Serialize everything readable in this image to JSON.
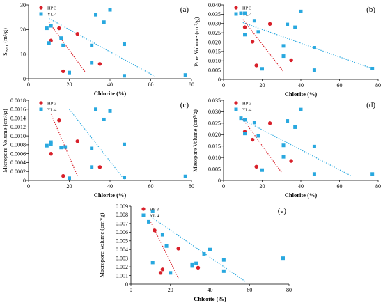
{
  "colors": {
    "hp3": "#d8202a",
    "yl4": "#29a8df"
  },
  "chart_data": [
    {
      "type": "scatter",
      "panel_label": "(a)",
      "xlabel": "Chlorite (%)",
      "ylabel": "S_BET (m²/g)",
      "ylabel_main": "S",
      "ylabel_sub": "BET",
      "ylabel_rest": " (m²/g)",
      "xlim": [
        0,
        80
      ],
      "ylim": [
        0,
        30
      ],
      "x_ticks": [
        0,
        20,
        40,
        60,
        80
      ],
      "y_ticks": [
        0,
        10,
        20,
        30
      ],
      "x_tick_labels": [
        "0",
        "20",
        "40",
        "60",
        "80"
      ],
      "y_tick_labels": [
        "0",
        "10",
        "20",
        "30"
      ],
      "series": [
        {
          "name": "HP 3",
          "color_key": "hp3",
          "marker": "circle",
          "points": [
            [
              15,
              20.5
            ],
            [
              11,
              15.5
            ],
            [
              24,
              18.2
            ],
            [
              17,
              3
            ],
            [
              35,
              6
            ]
          ],
          "trend": [
            [
              10,
              23
            ],
            [
              28,
              2.5
            ]
          ]
        },
        {
          "name": "YL 4",
          "color_key": "yl4",
          "marker": "square",
          "points": [
            [
              9,
              20.5
            ],
            [
              11,
              21.5
            ],
            [
              10,
              14.5
            ],
            [
              16,
              16.5
            ],
            [
              17,
              13.5
            ],
            [
              20,
              2.5
            ],
            [
              31,
              13.5
            ],
            [
              31,
              6.5
            ],
            [
              33,
              26
            ],
            [
              37,
              23
            ],
            [
              40,
              28
            ],
            [
              47,
              14
            ],
            [
              47,
              1.2
            ],
            [
              77,
              1.5
            ]
          ],
          "trend": [
            [
              10,
              24.5
            ],
            [
              62,
              1
            ]
          ]
        }
      ]
    },
    {
      "type": "scatter",
      "panel_label": "(b)",
      "xlabel": "Chlorite (%)",
      "ylabel": "Pore Volume (cm³/g)",
      "xlim": [
        0,
        80
      ],
      "ylim": [
        0,
        0.04
      ],
      "x_ticks": [
        0,
        20,
        40,
        60,
        80
      ],
      "y_ticks": [
        0,
        0.005,
        0.01,
        0.015,
        0.02,
        0.025,
        0.03,
        0.035,
        0.04
      ],
      "x_tick_labels": [
        "0",
        "20",
        "40",
        "60",
        "80"
      ],
      "y_tick_labels": [
        "0",
        "0.005",
        "0.010",
        "0.015",
        "0.020",
        "0.025",
        "0.030",
        "0.035",
        "0.040"
      ],
      "series": [
        {
          "name": "HP 3",
          "color_key": "hp3",
          "marker": "circle",
          "points": [
            [
              11,
              0.028
            ],
            [
              15,
              0.0202
            ],
            [
              24,
              0.0298
            ],
            [
              17,
              0.0075
            ],
            [
              35,
              0.0103
            ]
          ],
          "trend": [
            [
              10,
              0.0322
            ],
            [
              31,
              0.0042
            ]
          ]
        },
        {
          "name": "YL 4",
          "color_key": "yl4",
          "marker": "square",
          "points": [
            [
              9,
              0.0355
            ],
            [
              11,
              0.0355
            ],
            [
              11,
              0.024
            ],
            [
              16,
              0.0315
            ],
            [
              18,
              0.0255
            ],
            [
              20,
              0.0057
            ],
            [
              31,
              0.018
            ],
            [
              31,
              0.0125
            ],
            [
              33,
              0.0295
            ],
            [
              37,
              0.028
            ],
            [
              40,
              0.0365
            ],
            [
              47,
              0.017
            ],
            [
              47,
              0.005
            ],
            [
              77,
              0.0058
            ]
          ],
          "trend": [
            [
              10,
              0.0305
            ],
            [
              77,
              0.0058
            ]
          ]
        }
      ]
    },
    {
      "type": "scatter",
      "panel_label": "(c)",
      "xlabel": "Chlorite (%)",
      "ylabel": "Micropore Volume (cm³/g)",
      "xlim": [
        0,
        80
      ],
      "ylim": [
        0,
        0.0018
      ],
      "x_ticks": [
        0,
        20,
        40,
        60,
        80
      ],
      "y_ticks": [
        0,
        0.0002,
        0.0004,
        0.0006,
        0.0008,
        0.001,
        0.0012,
        0.0014,
        0.0016,
        0.0018
      ],
      "x_tick_labels": [
        "0",
        "20",
        "40",
        "60",
        "80"
      ],
      "y_tick_labels": [
        "0",
        "0.0002",
        "0.0004",
        "0.0006",
        "0.0008",
        "0.0010",
        "0.0012",
        "0.0014",
        "0.0016",
        "0.0018"
      ],
      "series": [
        {
          "name": "HP 3",
          "color_key": "hp3",
          "marker": "circle",
          "points": [
            [
              15,
              0.00135
            ],
            [
              11,
              0.0006
            ],
            [
              24,
              0.00088
            ],
            [
              17,
              0.0001
            ],
            [
              35,
              0.0003
            ]
          ],
          "trend": [
            [
              11,
              0.0015
            ],
            [
              24,
              0.0001
            ]
          ]
        },
        {
          "name": "YL 4",
          "color_key": "yl4",
          "marker": "square",
          "points": [
            [
              9,
              0.00078
            ],
            [
              11,
              0.00082
            ],
            [
              11,
              0.00086
            ],
            [
              16,
              0.00074
            ],
            [
              18,
              0.00075
            ],
            [
              20,
              5e-05
            ],
            [
              31,
              0.00072
            ],
            [
              31,
              0.0003
            ],
            [
              33,
              0.0016
            ],
            [
              37,
              0.00137
            ],
            [
              40,
              0.00156
            ],
            [
              47,
              0.00081
            ],
            [
              47,
              7e-05
            ],
            [
              77,
              9e-05
            ]
          ],
          "trend": [
            [
              20,
              0.0016
            ],
            [
              47,
              2e-05
            ]
          ]
        }
      ]
    },
    {
      "type": "scatter",
      "panel_label": "(d)",
      "xlabel": "Chlorite (%)",
      "ylabel": "Mesopore Volume (cm³/g)",
      "xlim": [
        0,
        80
      ],
      "ylim": [
        0,
        0.035
      ],
      "x_ticks": [
        0,
        20,
        40,
        60,
        80
      ],
      "y_ticks": [
        0,
        0.005,
        0.01,
        0.015,
        0.02,
        0.025,
        0.03,
        0.035
      ],
      "x_tick_labels": [
        "0",
        "20",
        "40",
        "60",
        "80"
      ],
      "y_tick_labels": [
        "0",
        "0.005",
        "0.010",
        "0.015",
        "0.020",
        "0.025",
        "0.030",
        "0.035"
      ],
      "series": [
        {
          "name": "HP 3",
          "color_key": "hp3",
          "marker": "circle",
          "points": [
            [
              11,
              0.0213
            ],
            [
              15,
              0.0178
            ],
            [
              24,
              0.025
            ],
            [
              17,
              0.006
            ],
            [
              35,
              0.0085
            ]
          ],
          "trend": [
            [
              10,
              0.0268
            ],
            [
              30,
              0.0035
            ]
          ]
        },
        {
          "name": "YL 4",
          "color_key": "yl4",
          "marker": "square",
          "points": [
            [
              9,
              0.0272
            ],
            [
              11,
              0.0265
            ],
            [
              11,
              0.0205
            ],
            [
              16,
              0.0253
            ],
            [
              18,
              0.0195
            ],
            [
              20,
              0.0045
            ],
            [
              31,
              0.0153
            ],
            [
              31,
              0.0103
            ],
            [
              33,
              0.026
            ],
            [
              37,
              0.0233
            ],
            [
              40,
              0.031
            ],
            [
              47,
              0.0148
            ],
            [
              47,
              0.0028
            ],
            [
              77,
              0.0028
            ]
          ],
          "trend": [
            [
              10,
              0.0265
            ],
            [
              66,
              0.002
            ]
          ]
        }
      ]
    },
    {
      "type": "scatter",
      "panel_label": "(e)",
      "xlabel": "Chlorite (%)",
      "ylabel": "Macropore Volume (cm³/g)",
      "xlim": [
        0,
        80
      ],
      "ylim": [
        0,
        0.009
      ],
      "x_ticks": [
        0,
        20,
        40,
        60,
        80
      ],
      "y_ticks": [
        0,
        0.001,
        0.002,
        0.003,
        0.004,
        0.005,
        0.006,
        0.007,
        0.008,
        0.009
      ],
      "x_tick_labels": [
        "0",
        "20",
        "40",
        "60",
        "80"
      ],
      "y_tick_labels": [
        "0",
        "0.001",
        "0.002",
        "0.003",
        "0.004",
        "0.005",
        "0.006",
        "0.007",
        "0.008",
        "0.009"
      ],
      "series": [
        {
          "name": "HP 3",
          "color_key": "hp3",
          "marker": "circle",
          "points": [
            [
              12,
              0.0062
            ],
            [
              16,
              0.0017
            ],
            [
              15,
              0.0013
            ],
            [
              24,
              0.0041
            ],
            [
              34,
              0.0019
            ]
          ],
          "trend": [
            [
              10,
              0.0072
            ],
            [
              24,
              0.0007
            ]
          ]
        },
        {
          "name": "YL 4",
          "color_key": "yl4",
          "marker": "square",
          "points": [
            [
              9,
              0.0072
            ],
            [
              11,
              0.0084
            ],
            [
              11,
              0.0025
            ],
            [
              16,
              0.0057
            ],
            [
              18,
              0.0044
            ],
            [
              20,
              0.0013
            ],
            [
              31,
              0.0021
            ],
            [
              31,
              0.0023
            ],
            [
              33,
              0.0024
            ],
            [
              37,
              0.0035
            ],
            [
              40,
              0.004
            ],
            [
              47,
              0.0028
            ],
            [
              47,
              0.0015
            ],
            [
              77,
              0.003
            ]
          ],
          "trend": [
            [
              10,
              0.0078
            ],
            [
              58,
              0.0003
            ]
          ]
        }
      ]
    }
  ]
}
